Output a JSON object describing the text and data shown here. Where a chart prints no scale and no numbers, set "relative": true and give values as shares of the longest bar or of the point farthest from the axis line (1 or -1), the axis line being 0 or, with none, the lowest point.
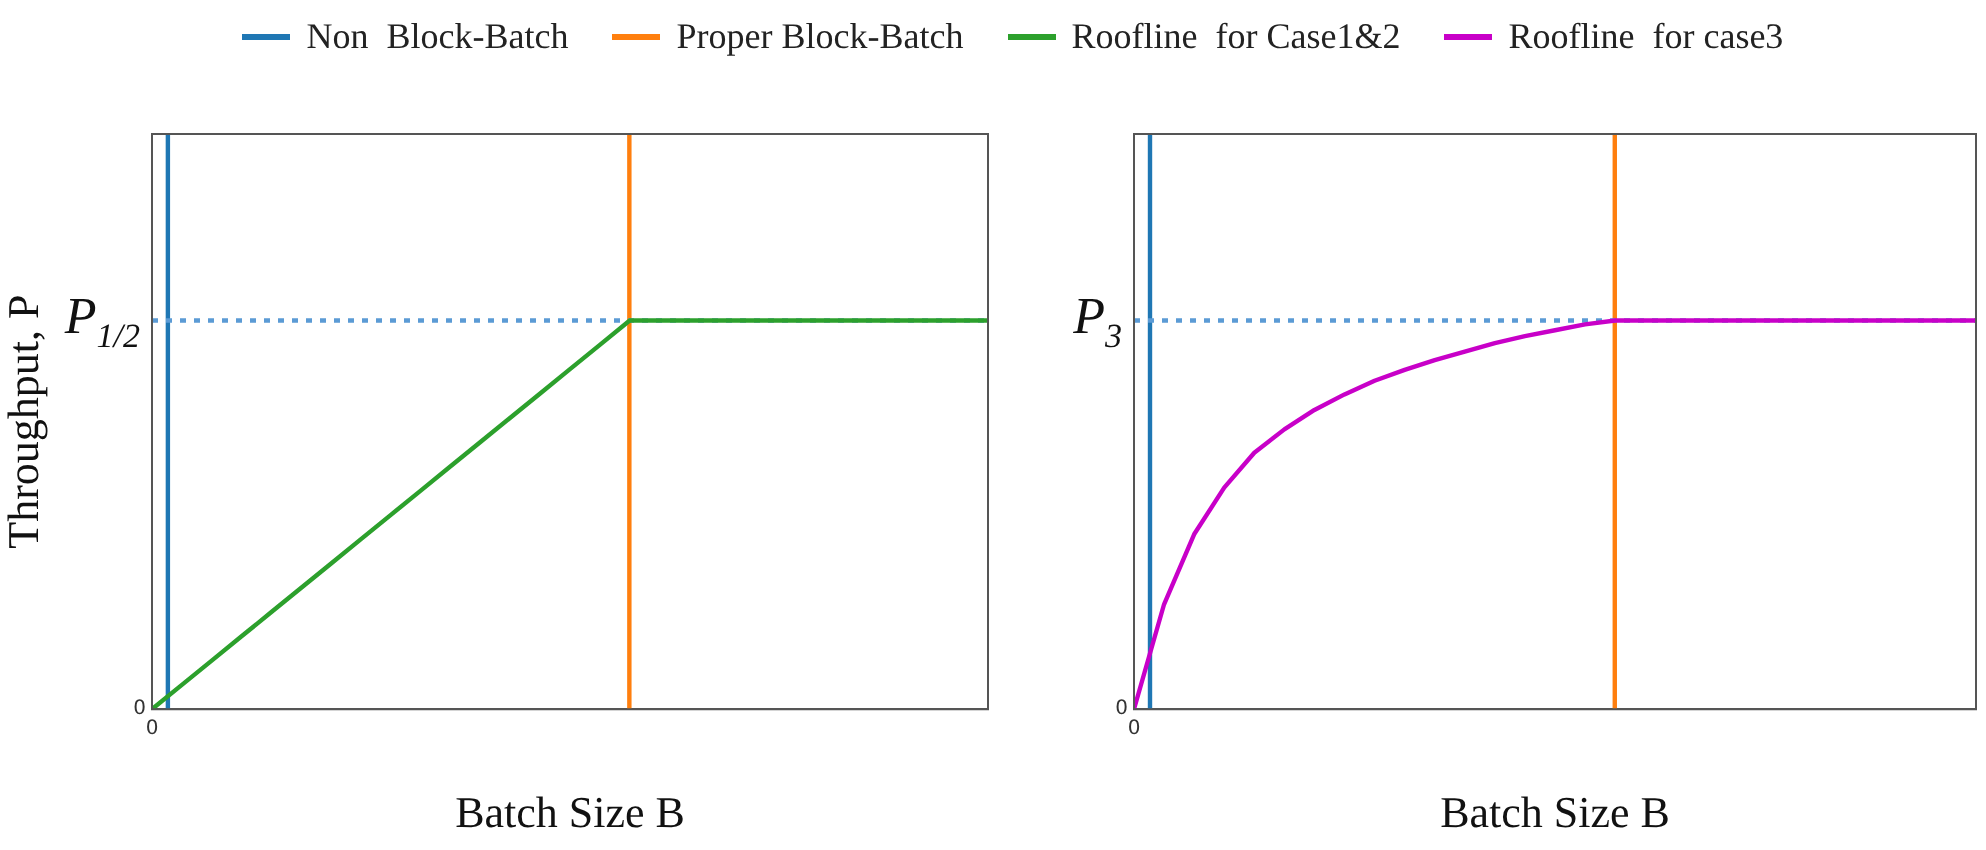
{
  "chart_data": [
    {
      "type": "line",
      "relative": true,
      "xlabel": "Batch Size B",
      "ylabel": "Throughput, P",
      "legend": "top",
      "annotations": [
        "0",
        "0"
      ],
      "categories": [
        null,
        null,
        null,
        null,
        null,
        null,
        null,
        null,
        null,
        null,
        null,
        null,
        null,
        null,
        null,
        null,
        null,
        null,
        null,
        null,
        null,
        null,
        null,
        null,
        null,
        null,
        null,
        null,
        null
      ],
      "series": [
        {
          "name": "Roofline  for Case1&2",
          "color": "#2ca02c",
          "values": [
            0,
            0.0625,
            0.125,
            0.1875,
            0.25,
            0.3125,
            0.375,
            0.4375,
            0.5,
            0.5625,
            0.625,
            0.6875,
            0.75,
            0.8125,
            0.875,
            0.9375,
            1,
            1,
            1,
            1,
            1,
            1,
            1,
            1,
            1,
            1,
            1,
            1,
            1
          ]
        }
      ],
      "ref_lines": [
        {
          "axis": "x",
          "label": "Non  Block-Batch",
          "color": "#1f77b4"
        },
        {
          "axis": "x",
          "label": "Proper Block-Batch",
          "color": "#ff7f0e"
        },
        {
          "axis": "y",
          "value": 1,
          "label": "P$_{1/2}$",
          "color": "#5b9bd5",
          "line_style": "dotted"
        }
      ]
    },
    {
      "type": "line",
      "relative": true,
      "xlabel": "Batch Size B",
      "legend": "top",
      "annotations": [
        "0",
        "0"
      ],
      "categories": [
        null,
        null,
        null,
        null,
        null,
        null,
        null,
        null,
        null,
        null,
        null,
        null,
        null,
        null,
        null,
        null,
        null,
        null,
        null,
        null,
        null,
        null,
        null,
        null,
        null,
        null,
        null,
        null,
        null
      ],
      "series": [
        {
          "name": "Roofline  for case3",
          "color": "#c800c8",
          "values": [
            0,
            0.27,
            0.45,
            0.57,
            0.66,
            0.72,
            0.77,
            0.81,
            0.845,
            0.873,
            0.898,
            0.92,
            0.942,
            0.96,
            0.975,
            0.99,
            1,
            1,
            1,
            1,
            1,
            1,
            1,
            1,
            1,
            1,
            1,
            1,
            1
          ]
        }
      ],
      "ref_lines": [
        {
          "axis": "x",
          "color": "#1f77b4"
        },
        {
          "axis": "x",
          "color": "#ff7f0e"
        },
        {
          "axis": "y",
          "value": 1,
          "label": "P$_{3}$",
          "color": "#5b9bd5",
          "line_style": "dotted"
        }
      ]
    }
  ]
}
